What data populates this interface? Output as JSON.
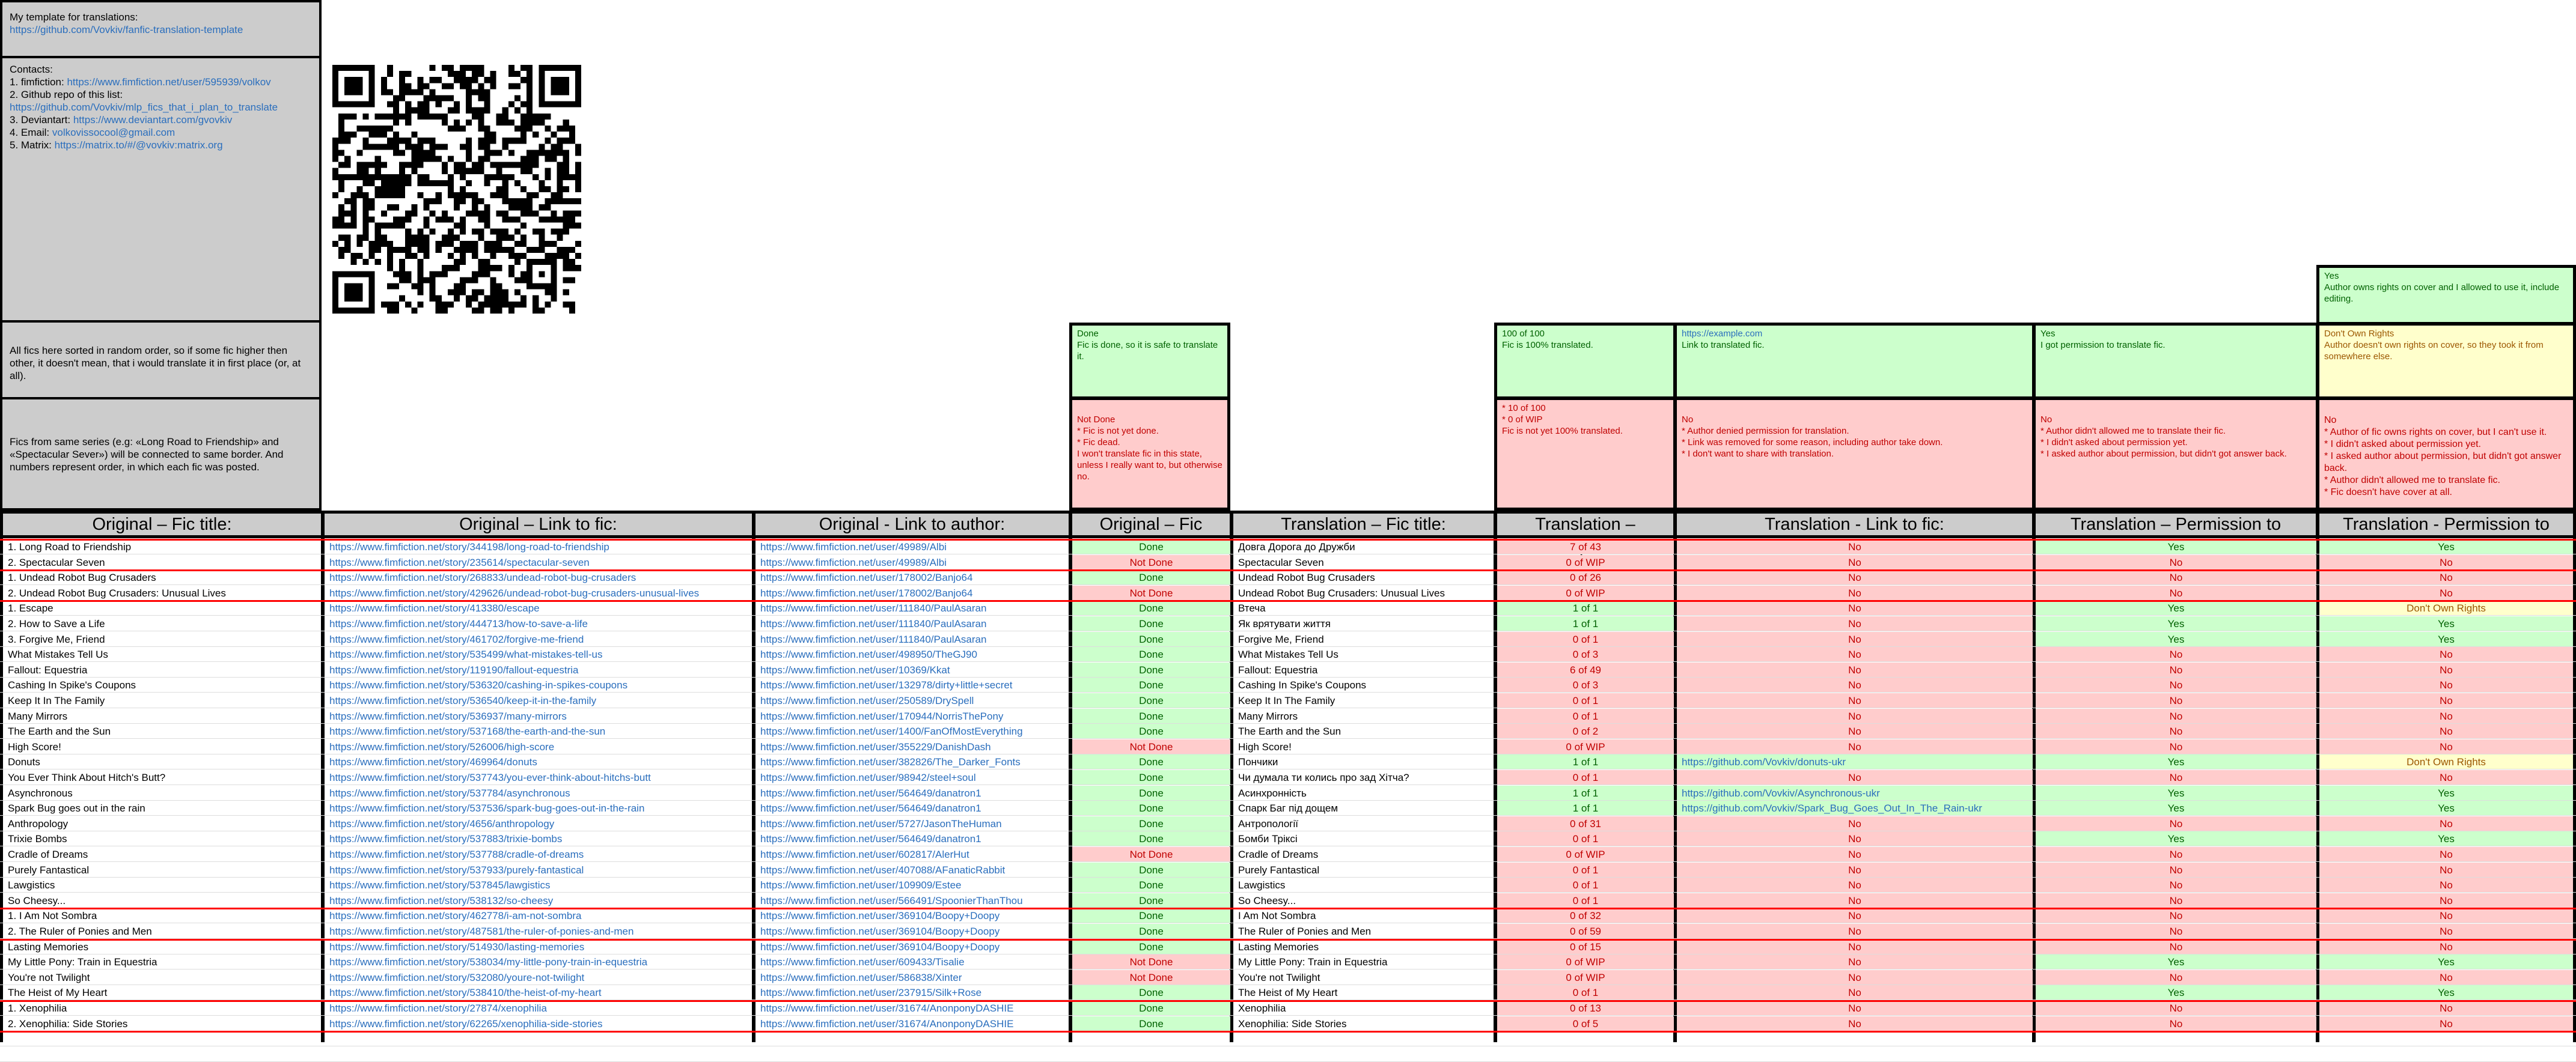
{
  "info": {
    "template_label": "My template for translations:",
    "template_link": "https://github.com/Vovkiv/fanfic-translation-template",
    "contacts_title": "Contacts:",
    "c1_label": "1. fimfiction:",
    "c1_link": "https://www.fimfiction.net/user/595939/volkov",
    "c2_label": "2. Github repo of this list:",
    "c2_link": "https://github.com/Vovkiv/mlp_fics_that_i_plan_to_translate",
    "c3_label": "3. Deviantart:",
    "c3_link": "https://www.deviantart.com/gvovkiv",
    "c4_label": "4. Email:",
    "c4_link": "volkovissocool@gmail.com",
    "c5_label": "5. Matrix:",
    "c5_link": "https://matrix.to/#/@vovkiv:matrix.org",
    "random_order": "All fics here sorted in random order, so if some fic higher then other, it doesn't mean, that i would translate it in first place (or, at all).",
    "series_note": "Fics from same series (e.g: «Long Road to Friendship» and «Spectacular Sever») will be connected to same border. And numbers represent order, in which each fic was posted."
  },
  "legend": {
    "status_done_title": "Done",
    "status_done_text": "Fic is done, so it is safe to translate it.",
    "status_nd_title": "Not Done",
    "status_nd_text": "* Fic is not yet done.\n* Fic dead.\nI won't translate fic in this state, unless I really want to, but otherwise no.",
    "chap_g_title": "100 of 100",
    "chap_g_text": "Fic is 100% translated.",
    "chap_r_text": "* 10 of 100\n* 0 of WIP\nFic is not yet 100% translated.",
    "link_g_title": "https://example.com",
    "link_g_text": "Link to translated fic.",
    "link_r_title": "No",
    "link_r_text": "* Author denied permission for translation.\n* Link was removed for some reason, including author take down.\n* I don't want to share with translation.",
    "perm_g_title": "Yes",
    "perm_g_text": "I got permission to translate fic.",
    "perm_r_title": "No",
    "perm_r_text": "* Author didn't allowed me to translate their fic.\n* I didn't asked about permission yet.\n* I asked author about permission, but didn't got answer back.",
    "cov_g_title": "Yes",
    "cov_g_text": "Author owns rights on cover and I allowed to use it, include editing.",
    "cov_y_title": "Don't Own Rights",
    "cov_y_text": "Author doesn't own rights on cover, so they took it from somewhere else.",
    "cov_r_title": "No",
    "cov_r_text": "* Author of fic owns rights on cover, but I can't use it.\n* I didn't asked about permission yet.\n* I asked author about permission, but didn't got answer back.\n* Author didn't allowed me to translate fic.\n* Fic doesn't have cover at all."
  },
  "headers": {
    "orig_title": "Original – Fic title:",
    "orig_link": "Original – Link to fic:",
    "orig_author": "Original - Link to author:",
    "orig_status": "Original – Fic status:",
    "tr_title": "Translation – Fic title:",
    "tr_chapters": "Translation – Chapters:",
    "tr_link": "Translation - Link to fic:",
    "tr_perm": "Translation – Permission to translate:",
    "tr_cover": "Translation - Permission to cover:"
  },
  "rows": [
    {
      "t": "1. Long Road to Friendship",
      "l": "https://www.fimfiction.net/story/344198/long-road-to-friendship",
      "a": "https://www.fimfiction.net/user/49989/Albi",
      "s": "Done",
      "tt": "Довга Дорога до Дружби",
      "ch": "7 of 43",
      "tl": "No",
      "p": "Yes",
      "c": "Yes"
    },
    {
      "t": "2. Spectacular Seven",
      "l": "https://www.fimfiction.net/story/235614/spectacular-seven",
      "a": "https://www.fimfiction.net/user/49989/Albi",
      "s": "Not Done",
      "tt": "Spectacular Seven",
      "ch": "0 of WIP",
      "tl": "No",
      "p": "No",
      "c": "No"
    },
    {
      "t": "1. Undead Robot Bug Crusaders",
      "l": "https://www.fimfiction.net/story/268833/undead-robot-bug-crusaders",
      "a": "https://www.fimfiction.net/user/178002/Banjo64",
      "s": "Done",
      "tt": "Undead Robot Bug Crusaders",
      "ch": "0 of 26",
      "tl": "No",
      "p": "No",
      "c": "No"
    },
    {
      "t": "2. Undead Robot Bug Crusaders: Unusual Lives",
      "l": "https://www.fimfiction.net/story/429626/undead-robot-bug-crusaders-unusual-lives",
      "a": "https://www.fimfiction.net/user/178002/Banjo64",
      "s": "Not Done",
      "tt": "Undead Robot Bug Crusaders: Unusual Lives",
      "ch": "0 of WIP",
      "tl": "No",
      "p": "No",
      "c": "No"
    },
    {
      "t": "1.  Escape",
      "l": "https://www.fimfiction.net/story/413380/escape",
      "a": "https://www.fimfiction.net/user/111840/PaulAsaran",
      "s": "Done",
      "tt": "Втеча",
      "ch": "1 of 1",
      "tl": "No",
      "p": "Yes",
      "c": "Don't Own Rights"
    },
    {
      "t": "2. How to Save a Life",
      "l": "https://www.fimfiction.net/story/444713/how-to-save-a-life",
      "a": "https://www.fimfiction.net/user/111840/PaulAsaran",
      "s": "Done",
      "tt": "Як врятувати життя",
      "ch": "1 of 1",
      "tl": "No",
      "p": "Yes",
      "c": "Yes"
    },
    {
      "t": "3. Forgive Me, Friend",
      "l": "https://www.fimfiction.net/story/461702/forgive-me-friend",
      "a": "https://www.fimfiction.net/user/111840/PaulAsaran",
      "s": "Done",
      "tt": "Forgive Me, Friend",
      "ch": "0 of 1",
      "tl": "No",
      "p": "Yes",
      "c": "Yes"
    },
    {
      "t": "What Mistakes Tell Us",
      "l": "https://www.fimfiction.net/story/535499/what-mistakes-tell-us",
      "a": "https://www.fimfiction.net/user/498950/TheGJ90",
      "s": "Done",
      "tt": "What Mistakes Tell Us",
      "ch": "0 of 3",
      "tl": "No",
      "p": "No",
      "c": "No"
    },
    {
      "t": "Fallout: Equestria",
      "l": "https://www.fimfiction.net/story/119190/fallout-equestria",
      "a": "https://www.fimfiction.net/user/10369/Kkat",
      "s": "Done",
      "tt": "Fallout: Equestria",
      "ch": "6 of 49",
      "tl": "No",
      "p": "No",
      "c": "No"
    },
    {
      "t": "Cashing In Spike's Coupons",
      "l": "https://www.fimfiction.net/story/536320/cashing-in-spikes-coupons",
      "a": "https://www.fimfiction.net/user/132978/dirty+little+secret",
      "s": "Done",
      "tt": "Cashing In Spike's Coupons",
      "ch": "0 of 3",
      "tl": "No",
      "p": "No",
      "c": "No"
    },
    {
      "t": "Keep It In The Family",
      "l": "https://www.fimfiction.net/story/536540/keep-it-in-the-family",
      "a": "https://www.fimfiction.net/user/250589/DrySpell",
      "s": "Done",
      "tt": "Keep It In The Family",
      "ch": "0 of 1",
      "tl": "No",
      "p": "No",
      "c": "No"
    },
    {
      "t": "Many Mirrors",
      "l": "https://www.fimfiction.net/story/536937/many-mirrors",
      "a": "https://www.fimfiction.net/user/170944/NorrisThePony",
      "s": "Done",
      "tt": "Many Mirrors",
      "ch": "0 of 1",
      "tl": "No",
      "p": "No",
      "c": "No"
    },
    {
      "t": "The Earth and the Sun",
      "l": "https://www.fimfiction.net/story/537168/the-earth-and-the-sun",
      "a": "https://www.fimfiction.net/user/1400/FanOfMostEverything",
      "s": "Done",
      "tt": "The Earth and the Sun",
      "ch": "0 of 2",
      "tl": "No",
      "p": "No",
      "c": "No"
    },
    {
      "t": "High Score!",
      "l": "https://www.fimfiction.net/story/526006/high-score",
      "a": "https://www.fimfiction.net/user/355229/DanishDash",
      "s": "Not Done",
      "tt": "High Score!",
      "ch": "0 of WIP",
      "tl": "No",
      "p": "No",
      "c": "No"
    },
    {
      "t": "Donuts",
      "l": "https://www.fimfiction.net/story/469964/donuts",
      "a": "https://www.fimfiction.net/user/382826/The_Darker_Fonts",
      "s": "Done",
      "tt": "Пончики",
      "ch": "1 of 1",
      "tl": "https://github.com/Vovkiv/donuts-ukr",
      "p": "Yes",
      "c": "Don't Own Rights"
    },
    {
      "t": "You Ever Think About Hitch's Butt?",
      "l": "https://www.fimfiction.net/story/537743/you-ever-think-about-hitchs-butt",
      "a": "https://www.fimfiction.net/user/98942/steel+soul",
      "s": "Done",
      "tt": "Чи думала ти колись про зад Хітча?",
      "ch": "0 of 1",
      "tl": "No",
      "p": "No",
      "c": "No"
    },
    {
      "t": "Asynchronous",
      "l": "https://www.fimfiction.net/story/537784/asynchronous",
      "a": "https://www.fimfiction.net/user/564649/danatron1",
      "s": "Done",
      "tt": "Асинхронність",
      "ch": "1 of 1",
      "tl": "https://github.com/Vovkiv/Asynchronous-ukr",
      "p": "Yes",
      "c": "Yes"
    },
    {
      "t": "Spark Bug goes out in the rain",
      "l": "https://www.fimfiction.net/story/537536/spark-bug-goes-out-in-the-rain",
      "a": "https://www.fimfiction.net/user/564649/danatron1",
      "s": "Done",
      "tt": "Спарк Баг під дощем",
      "ch": "1 of 1",
      "tl": "https://github.com/Vovkiv/Spark_Bug_Goes_Out_In_The_Rain-ukr",
      "p": "Yes",
      "c": "Yes"
    },
    {
      "t": "Anthropology",
      "l": "https://www.fimfiction.net/story/4656/anthropology",
      "a": "https://www.fimfiction.net/user/5727/JasonTheHuman",
      "s": "Done",
      "tt": "Антропології",
      "ch": "0 of 31",
      "tl": "No",
      "p": "No",
      "c": "No"
    },
    {
      "t": "Trixie Bombs",
      "l": "https://www.fimfiction.net/story/537883/trixie-bombs",
      "a": "https://www.fimfiction.net/user/564649/danatron1",
      "s": "Done",
      "tt": "Бомби Тріксі",
      "ch": "0 of 1",
      "tl": "No",
      "p": "Yes",
      "c": "Yes"
    },
    {
      "t": "Cradle of Dreams",
      "l": "https://www.fimfiction.net/story/537788/cradle-of-dreams",
      "a": "https://www.fimfiction.net/user/602817/AlerHut",
      "s": "Not Done",
      "tt": "Cradle of Dreams",
      "ch": "0 of WIP",
      "tl": "No",
      "p": "No",
      "c": "No"
    },
    {
      "t": "Purely Fantastical",
      "l": "https://www.fimfiction.net/story/537933/purely-fantastical",
      "a": "https://www.fimfiction.net/user/407088/AFanaticRabbit",
      "s": "Done",
      "tt": "Purely Fantastical",
      "ch": "0 of 1",
      "tl": "No",
      "p": "No",
      "c": "No"
    },
    {
      "t": "Lawgistics",
      "l": "https://www.fimfiction.net/story/537845/lawgistics",
      "a": "https://www.fimfiction.net/user/109909/Estee",
      "s": "Done",
      "tt": "Lawgistics",
      "ch": "0 of 1",
      "tl": "No",
      "p": "No",
      "c": "No"
    },
    {
      "t": "So Cheesy...",
      "l": "https://www.fimfiction.net/story/538132/so-cheesy",
      "a": "https://www.fimfiction.net/user/566491/SpoonierThanThou",
      "s": "Done",
      "tt": "So Cheesy...",
      "ch": "0 of 1",
      "tl": "No",
      "p": "No",
      "c": "No"
    },
    {
      "t": "1. I Am Not Sombra",
      "l": "https://www.fimfiction.net/story/462778/i-am-not-sombra",
      "a": "https://www.fimfiction.net/user/369104/Boopy+Doopy",
      "s": "Done",
      "tt": "I Am Not Sombra",
      "ch": "0 of 32",
      "tl": "No",
      "p": "No",
      "c": "No"
    },
    {
      "t": "2. The Ruler of Ponies and Men",
      "l": "https://www.fimfiction.net/story/487581/the-ruler-of-ponies-and-men",
      "a": "https://www.fimfiction.net/user/369104/Boopy+Doopy",
      "s": "Done",
      "tt": "The Ruler of Ponies and Men",
      "ch": "0 of 59",
      "tl": "No",
      "p": "No",
      "c": "No"
    },
    {
      "t": "Lasting Memories",
      "l": "https://www.fimfiction.net/story/514930/lasting-memories",
      "a": "https://www.fimfiction.net/user/369104/Boopy+Doopy",
      "s": "Done",
      "tt": "Lasting Memories",
      "ch": "0 of 15",
      "tl": "No",
      "p": "No",
      "c": "No"
    },
    {
      "t": "My Little Pony: Train in Equestria",
      "l": "https://www.fimfiction.net/story/538034/my-little-pony-train-in-equestria",
      "a": "https://www.fimfiction.net/user/609433/Tisalie",
      "s": "Not Done",
      "tt": " My Little Pony: Train in Equestria",
      "ch": "0 of WIP",
      "tl": "No",
      "p": "Yes",
      "c": "Yes"
    },
    {
      "t": "You're not Twilight",
      "l": "https://www.fimfiction.net/story/532080/youre-not-twilight",
      "a": "https://www.fimfiction.net/user/586838/Xinter",
      "s": "Not Done",
      "tt": "You're not Twilight",
      "ch": "0 of WIP",
      "tl": "No",
      "p": "No",
      "c": "No"
    },
    {
      "t": "The Heist of My Heart",
      "l": "https://www.fimfiction.net/story/538410/the-heist-of-my-heart",
      "a": "https://www.fimfiction.net/user/237915/Silk+Rose",
      "s": "Done",
      "tt": "The Heist of My Heart",
      "ch": "0 of 1",
      "tl": "No",
      "p": "Yes",
      "c": "Yes"
    },
    {
      "t": "1. Xenophilia",
      "l": "https://www.fimfiction.net/story/27874/xenophilia",
      "a": "https://www.fimfiction.net/user/31674/AnonponyDASHIE",
      "s": "Done",
      "tt": "Xenophilia",
      "ch": "0 of 13",
      "tl": "No",
      "p": "No",
      "c": "No"
    },
    {
      "t": "2. Xenophilia: Side Stories",
      "l": "https://www.fimfiction.net/story/62265/xenophilia-side-stories",
      "a": "https://www.fimfiction.net/user/31674/AnonponyDASHIE",
      "s": "Done",
      "tt": "Xenophilia: Side Stories",
      "ch": "0 of 5",
      "tl": "No",
      "p": "No",
      "c": "No"
    }
  ],
  "series_rows": [
    0,
    2,
    4,
    24,
    26,
    30,
    32
  ]
}
